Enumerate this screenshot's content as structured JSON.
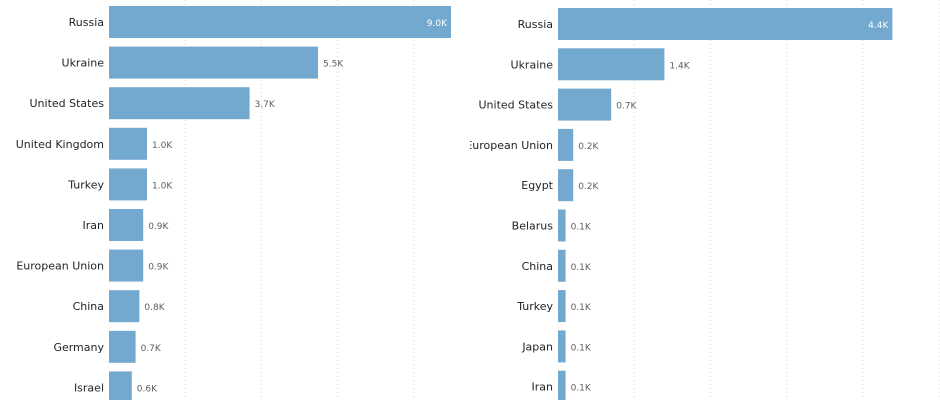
{
  "chart_data": [
    {
      "type": "bar",
      "orientation": "horizontal",
      "categories": [
        "Russia",
        "Ukraine",
        "United States",
        "United Kingdom",
        "Turkey",
        "Iran",
        "European Union",
        "China",
        "Germany",
        "Israel"
      ],
      "values": [
        9.0,
        5.5,
        3.7,
        1.0,
        1.0,
        0.9,
        0.9,
        0.8,
        0.7,
        0.6
      ],
      "value_labels": [
        "9.0K",
        "5.5K",
        "3.7K",
        "1.0K",
        "1.0K",
        "0.9K",
        "0.9K",
        "0.8K",
        "0.7K",
        "0.6K"
      ],
      "unit": "K",
      "xlim": [
        0,
        10
      ],
      "grid": "vertical dotted",
      "bar_color": "#74a9cf"
    },
    {
      "type": "bar",
      "orientation": "horizontal",
      "categories": [
        "Russia",
        "Ukraine",
        "United States",
        "European Union",
        "Egypt",
        "Belarus",
        "China",
        "Turkey",
        "Japan",
        "Iran"
      ],
      "values": [
        4.4,
        1.4,
        0.7,
        0.2,
        0.2,
        0.1,
        0.1,
        0.1,
        0.1,
        0.1
      ],
      "value_labels": [
        "4.4K",
        "1.4K",
        "0.7K",
        "0.2K",
        "0.2K",
        "0.1K",
        "0.1K",
        "0.1K",
        "0.1K",
        "0.1K"
      ],
      "unit": "K",
      "xlim": [
        0,
        5
      ],
      "grid": "vertical dotted",
      "bar_color": "#74a9cf"
    }
  ]
}
